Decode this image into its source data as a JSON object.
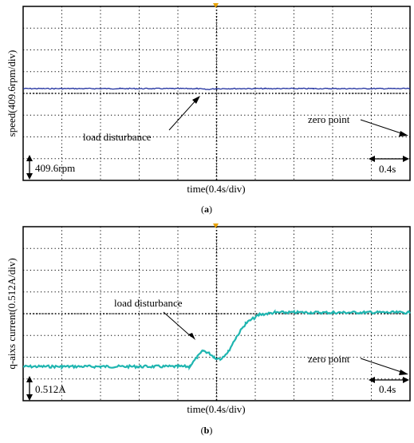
{
  "chart_data": [
    {
      "type": "line",
      "panel_label": "(a)",
      "xlabel": "time(0.4s/div)",
      "ylabel": "speed(409.6rpm/div)",
      "x_unit_per_div": 0.4,
      "y_unit_per_div": 409.6,
      "x_range": [
        0,
        4.0
      ],
      "y_range": [
        0,
        8
      ],
      "grid": true,
      "series": [
        {
          "color": "#1f2f9e",
          "x": [
            0.0,
            1.0,
            1.8,
            1.9,
            2.0,
            2.5,
            3.0,
            4.0
          ],
          "y": [
            4.22,
            4.22,
            4.22,
            4.18,
            4.22,
            4.22,
            4.22,
            4.22
          ]
        }
      ],
      "annotations": {
        "disturbance": "load disturbance",
        "zero": "zero point",
        "scale_y": "409.6rpm",
        "scale_x": "0.4s"
      }
    },
    {
      "type": "line",
      "panel_label": "(b)",
      "xlabel": "time(0.4s/div)",
      "ylabel": "q-aixs current(0.512A/div)",
      "x_unit_per_div": 0.4,
      "y_unit_per_div": 0.512,
      "x_range": [
        0,
        4.0
      ],
      "y_range": [
        0,
        8
      ],
      "grid": true,
      "series": [
        {
          "color": "#1fb5b0",
          "x": [
            0.0,
            0.4,
            0.8,
            1.2,
            1.6,
            1.72,
            1.8,
            1.86,
            1.92,
            1.98,
            2.04,
            2.12,
            2.2,
            2.3,
            2.44,
            2.6,
            2.8,
            3.2,
            3.6,
            4.0
          ],
          "y": [
            1.57,
            1.57,
            1.57,
            1.57,
            1.57,
            1.57,
            2.0,
            2.3,
            2.2,
            1.98,
            1.92,
            2.25,
            2.9,
            3.55,
            3.95,
            4.05,
            4.06,
            4.05,
            4.06,
            4.05
          ]
        }
      ],
      "annotations": {
        "disturbance": "load disturbance",
        "zero": "zero point",
        "scale_y": "0.512A",
        "scale_x": "0.4s"
      }
    }
  ],
  "colors": {
    "trace_a": "#1f2f9e",
    "trace_b": "#1fb5b0",
    "trigger": "#e8a200"
  }
}
